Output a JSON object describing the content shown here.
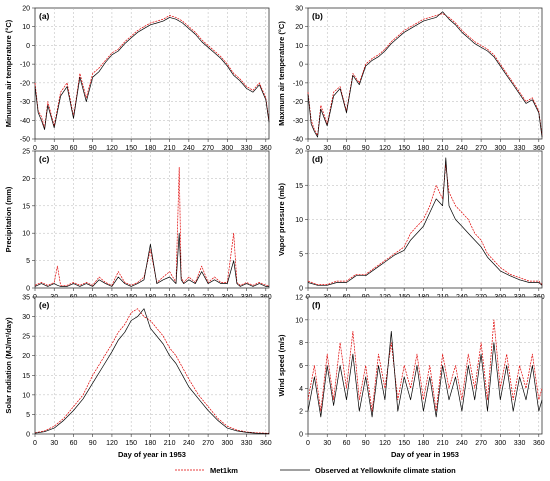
{
  "figure": {
    "legend": {
      "met_label": "Met1km",
      "observed_label": "Observed at Yellowknife climate station"
    }
  },
  "colors": {
    "met1km": "#e00000",
    "observed": "#000000",
    "grid": "#b5b5b5"
  },
  "chart_data": [
    {
      "type": "line",
      "panel": "(a)",
      "ylabel": "Minumum air temperature (°C)",
      "xlabel": "",
      "xlim": [
        0,
        365
      ],
      "ylim": [
        -50,
        20
      ],
      "yticks": [
        -50,
        -40,
        -30,
        -20,
        -10,
        0,
        10,
        20
      ],
      "xticks": [
        0,
        30,
        60,
        90,
        120,
        150,
        180,
        210,
        240,
        270,
        300,
        330,
        360
      ],
      "grid": true,
      "series": [
        {
          "name": "Met1km",
          "x": [
            0,
            5,
            10,
            15,
            20,
            30,
            40,
            50,
            60,
            70,
            80,
            90,
            100,
            110,
            120,
            130,
            140,
            150,
            160,
            170,
            180,
            190,
            200,
            210,
            220,
            230,
            240,
            250,
            260,
            270,
            280,
            290,
            300,
            310,
            320,
            330,
            340,
            350,
            360,
            365
          ],
          "values": [
            -20,
            -35,
            -38,
            -44,
            -30,
            -43,
            -25,
            -20,
            -38,
            -15,
            -28,
            -15,
            -12,
            -8,
            -4,
            -2,
            2,
            5,
            8,
            10,
            12,
            13,
            14,
            16,
            15,
            13,
            10,
            7,
            3,
            0,
            -3,
            -6,
            -10,
            -15,
            -18,
            -22,
            -24,
            -20,
            -28,
            -40
          ]
        },
        {
          "name": "Observed at Yellowknife climate station",
          "x": [
            0,
            5,
            10,
            15,
            20,
            30,
            40,
            50,
            60,
            70,
            80,
            90,
            100,
            110,
            120,
            130,
            140,
            150,
            160,
            170,
            180,
            190,
            200,
            210,
            220,
            230,
            240,
            250,
            260,
            270,
            280,
            290,
            300,
            310,
            320,
            330,
            340,
            350,
            360,
            365
          ],
          "values": [
            -22,
            -36,
            -40,
            -45,
            -32,
            -44,
            -27,
            -22,
            -39,
            -17,
            -30,
            -17,
            -14,
            -9,
            -5,
            -3,
            1,
            4,
            7,
            9,
            11,
            12,
            13,
            15,
            14,
            12,
            9,
            6,
            2,
            -1,
            -4,
            -7,
            -11,
            -16,
            -19,
            -23,
            -25,
            -21,
            -29,
            -41
          ]
        }
      ]
    },
    {
      "type": "line",
      "panel": "(b)",
      "ylabel": "Maxmum air temperature (°C)",
      "xlabel": "",
      "xlim": [
        0,
        365
      ],
      "ylim": [
        -40,
        30
      ],
      "yticks": [
        -40,
        -30,
        -20,
        -10,
        0,
        10,
        20,
        30
      ],
      "xticks": [
        0,
        30,
        60,
        90,
        120,
        150,
        180,
        210,
        240,
        270,
        300,
        330,
        360
      ],
      "grid": true,
      "series": [
        {
          "name": "Met1km",
          "x": [
            0,
            5,
            10,
            15,
            20,
            30,
            40,
            50,
            60,
            70,
            80,
            90,
            100,
            110,
            120,
            130,
            140,
            150,
            160,
            170,
            180,
            190,
            200,
            210,
            220,
            230,
            240,
            250,
            260,
            270,
            280,
            290,
            300,
            310,
            320,
            330,
            340,
            350,
            360,
            365
          ],
          "values": [
            -15,
            -30,
            -35,
            -38,
            -22,
            -32,
            -15,
            -12,
            -25,
            -5,
            -10,
            0,
            3,
            5,
            8,
            12,
            15,
            18,
            20,
            22,
            24,
            25,
            26,
            27,
            25,
            22,
            18,
            15,
            12,
            10,
            8,
            5,
            0,
            -5,
            -10,
            -15,
            -20,
            -18,
            -25,
            -38
          ]
        },
        {
          "name": "Observed at Yellowknife climate station",
          "x": [
            0,
            5,
            10,
            15,
            20,
            30,
            40,
            50,
            60,
            70,
            80,
            90,
            100,
            110,
            120,
            130,
            140,
            150,
            160,
            170,
            180,
            190,
            200,
            210,
            220,
            230,
            240,
            250,
            260,
            270,
            280,
            290,
            300,
            310,
            320,
            330,
            340,
            350,
            360,
            365
          ],
          "values": [
            -16,
            -32,
            -36,
            -39,
            -24,
            -33,
            -17,
            -13,
            -26,
            -6,
            -11,
            -1,
            2,
            4,
            7,
            11,
            14,
            17,
            19,
            21,
            23,
            24,
            25,
            28,
            24,
            21,
            17,
            14,
            11,
            9,
            7,
            4,
            -1,
            -6,
            -11,
            -16,
            -21,
            -19,
            -26,
            -39
          ]
        }
      ]
    },
    {
      "type": "line",
      "panel": "(c)",
      "ylabel": "Precipitation (mm)",
      "xlabel": "",
      "xlim": [
        0,
        365
      ],
      "ylim": [
        0,
        25
      ],
      "yticks": [
        0,
        5,
        10,
        15,
        20,
        25
      ],
      "xticks": [
        0,
        30,
        60,
        90,
        120,
        150,
        180,
        210,
        240,
        270,
        300,
        330,
        360
      ],
      "grid": true,
      "series": [
        {
          "name": "Met1km",
          "x": [
            0,
            10,
            20,
            30,
            35,
            40,
            50,
            60,
            70,
            80,
            90,
            100,
            110,
            120,
            130,
            140,
            150,
            160,
            170,
            180,
            190,
            200,
            210,
            220,
            225,
            228,
            232,
            240,
            250,
            260,
            270,
            280,
            290,
            300,
            310,
            315,
            320,
            330,
            340,
            350,
            360,
            365
          ],
          "values": [
            0.5,
            1,
            0.5,
            1,
            4,
            0.5,
            0.5,
            1,
            0.5,
            1,
            0.5,
            2,
            1,
            0.5,
            3,
            1,
            0.5,
            1,
            2,
            7,
            1,
            2,
            3,
            1,
            22,
            2,
            1,
            2,
            1,
            4,
            1,
            2,
            1,
            1,
            10,
            1,
            0.5,
            1,
            0.5,
            1,
            0.5,
            0.5
          ]
        },
        {
          "name": "Observed at Yellowknife climate station",
          "x": [
            0,
            10,
            20,
            30,
            35,
            40,
            50,
            60,
            70,
            80,
            90,
            100,
            110,
            120,
            130,
            140,
            150,
            160,
            170,
            180,
            190,
            200,
            210,
            220,
            225,
            228,
            232,
            240,
            250,
            260,
            270,
            280,
            290,
            300,
            310,
            315,
            320,
            330,
            340,
            350,
            360,
            365
          ],
          "values": [
            0.3,
            0.8,
            0.3,
            0.8,
            0.5,
            0.3,
            0.3,
            0.8,
            0.3,
            0.8,
            0.3,
            1.5,
            0.8,
            0.3,
            2,
            0.8,
            0.3,
            0.8,
            1.5,
            8,
            0.8,
            1.5,
            2,
            0.8,
            10,
            1.5,
            0.8,
            1.5,
            0.8,
            3,
            0.8,
            1.5,
            0.8,
            0.8,
            5,
            0.8,
            0.3,
            0.8,
            0.3,
            0.8,
            0.3,
            0.3
          ]
        }
      ]
    },
    {
      "type": "line",
      "panel": "(d)",
      "ylabel": "Vapor pressure (mb)",
      "xlabel": "",
      "xlim": [
        0,
        365
      ],
      "ylim": [
        0,
        20
      ],
      "yticks": [
        0,
        5,
        10,
        15,
        20
      ],
      "xticks": [
        0,
        30,
        60,
        90,
        120,
        150,
        180,
        210,
        240,
        270,
        300,
        330,
        360
      ],
      "grid": true,
      "series": [
        {
          "name": "Met1km",
          "x": [
            0,
            15,
            30,
            45,
            60,
            75,
            90,
            105,
            120,
            135,
            150,
            160,
            170,
            180,
            190,
            200,
            210,
            215,
            220,
            230,
            240,
            250,
            260,
            270,
            280,
            290,
            300,
            315,
            330,
            345,
            360,
            365
          ],
          "values": [
            1,
            0.5,
            0.5,
            1,
            1,
            2,
            2,
            3,
            4,
            5,
            6,
            8,
            9,
            10,
            12,
            15,
            13,
            18,
            14,
            12,
            11,
            10,
            8,
            7,
            5,
            4,
            3,
            2,
            1.5,
            1,
            1,
            0.5
          ]
        },
        {
          "name": "Observed at Yellowknife climate station",
          "x": [
            0,
            15,
            30,
            45,
            60,
            75,
            90,
            105,
            120,
            135,
            150,
            160,
            170,
            180,
            190,
            200,
            210,
            215,
            220,
            230,
            240,
            250,
            260,
            270,
            280,
            290,
            300,
            315,
            330,
            345,
            360,
            365
          ],
          "values": [
            0.8,
            0.4,
            0.4,
            0.8,
            0.8,
            1.8,
            1.8,
            2.8,
            3.8,
            4.8,
            5.5,
            7,
            8,
            9,
            11,
            13,
            12,
            19,
            12,
            10,
            9,
            8,
            7,
            6,
            4.5,
            3.5,
            2.5,
            1.8,
            1.2,
            0.8,
            0.8,
            0.4
          ]
        }
      ]
    },
    {
      "type": "line",
      "panel": "(e)",
      "ylabel": "Solar radiation (MJ/m²/day)",
      "xlabel": "Day of year in 1953",
      "xlim": [
        0,
        365
      ],
      "ylim": [
        0,
        35
      ],
      "yticks": [
        0,
        5,
        10,
        15,
        20,
        25,
        30,
        35
      ],
      "xticks": [
        0,
        30,
        60,
        90,
        120,
        150,
        180,
        210,
        240,
        270,
        300,
        330,
        360
      ],
      "grid": true,
      "series": [
        {
          "name": "Met1km",
          "x": [
            0,
            15,
            30,
            45,
            60,
            75,
            90,
            105,
            120,
            130,
            140,
            150,
            160,
            170,
            180,
            190,
            200,
            210,
            220,
            230,
            240,
            255,
            270,
            285,
            300,
            315,
            330,
            345,
            360,
            365
          ],
          "values": [
            0.3,
            0.8,
            2,
            4,
            7,
            10,
            15,
            19,
            23,
            26,
            28,
            31,
            32,
            30,
            29,
            27,
            25,
            22,
            20,
            17,
            14,
            10,
            7,
            4,
            2,
            1,
            0.5,
            0.3,
            0.2,
            0.2
          ]
        },
        {
          "name": "Observed at Yellowknife climate station",
          "x": [
            0,
            15,
            30,
            45,
            60,
            75,
            90,
            105,
            120,
            130,
            140,
            150,
            160,
            170,
            180,
            190,
            200,
            210,
            220,
            230,
            240,
            255,
            270,
            285,
            300,
            315,
            330,
            345,
            360,
            365
          ],
          "values": [
            0.2,
            0.6,
            1.5,
            3.5,
            6,
            9,
            13,
            17,
            21,
            24,
            26,
            29,
            30,
            32,
            27,
            25,
            23,
            20,
            18,
            15,
            12,
            9,
            6,
            3.5,
            1.5,
            0.8,
            0.4,
            0.2,
            0.1,
            0.1
          ]
        }
      ]
    },
    {
      "type": "line",
      "panel": "(f)",
      "ylabel": "Wind speed (m/s)",
      "xlabel": "Day of year in 1953",
      "xlim": [
        0,
        365
      ],
      "ylim": [
        0,
        12
      ],
      "yticks": [
        0,
        2,
        4,
        6,
        8,
        10,
        12
      ],
      "xticks": [
        0,
        30,
        60,
        90,
        120,
        150,
        180,
        210,
        240,
        270,
        300,
        330,
        360
      ],
      "grid": true,
      "series": [
        {
          "name": "Met1km",
          "x": [
            0,
            10,
            20,
            30,
            40,
            50,
            60,
            70,
            80,
            90,
            100,
            110,
            120,
            130,
            140,
            150,
            160,
            170,
            180,
            190,
            200,
            210,
            220,
            230,
            240,
            250,
            260,
            270,
            280,
            290,
            300,
            310,
            320,
            330,
            340,
            350,
            360,
            365
          ],
          "values": [
            3,
            6,
            2,
            7,
            3,
            8,
            4,
            9,
            3,
            6,
            2,
            7,
            4,
            8,
            3,
            6,
            4,
            7,
            3,
            6,
            2,
            7,
            4,
            6,
            3,
            7,
            4,
            8,
            3,
            10,
            4,
            7,
            3,
            6,
            4,
            7,
            3,
            4
          ]
        },
        {
          "name": "Observed at Yellowknife climate station",
          "x": [
            0,
            10,
            20,
            30,
            40,
            50,
            60,
            70,
            80,
            90,
            100,
            110,
            120,
            130,
            140,
            150,
            160,
            170,
            180,
            190,
            200,
            210,
            220,
            230,
            240,
            250,
            260,
            270,
            280,
            290,
            300,
            310,
            320,
            330,
            340,
            350,
            360,
            365
          ],
          "values": [
            2,
            5,
            1.5,
            6,
            2.5,
            6,
            3,
            7,
            2,
            5,
            1.5,
            6,
            3,
            9,
            2,
            5,
            3,
            6,
            2,
            5,
            1.5,
            6,
            3,
            5,
            2,
            6,
            3,
            7,
            2,
            8,
            3,
            6,
            2,
            5,
            3,
            6,
            2,
            3
          ]
        }
      ]
    }
  ]
}
